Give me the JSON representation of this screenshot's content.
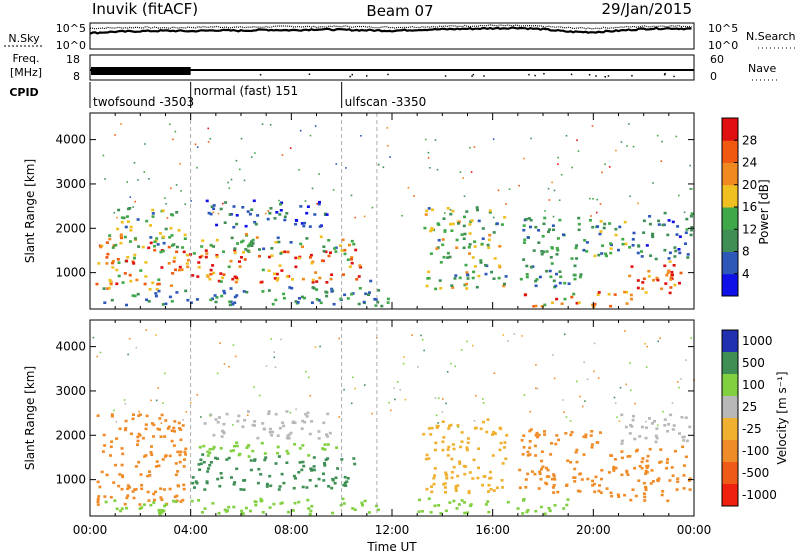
{
  "header": {
    "station": "Inuvik (fitACF)",
    "beam": "Beam 07",
    "date": "29/Jan/2015"
  },
  "colors": {
    "power_scale": [
      "#1010e8",
      "#2e58b8",
      "#3f8f55",
      "#3fa848",
      "#f0c020",
      "#f08a20",
      "#f05a10",
      "#e01010"
    ],
    "velocity_scale": [
      "#f02010",
      "#f05a18",
      "#f08c28",
      "#f0b030",
      "#b8b8b8",
      "#80d040",
      "#3f8f55",
      "#2030b0"
    ]
  },
  "chart_data": [
    {
      "type": "line",
      "panel": "N.Sky / N.Search",
      "left_label": "N.Sky",
      "right_label": "N.Search",
      "left_ticks": [
        "10^5",
        "10^0"
      ],
      "right_ticks": [
        "10^5",
        "10^0"
      ],
      "x_hours": [
        0,
        1,
        2,
        3,
        4,
        5,
        6,
        7,
        8,
        9,
        10,
        11,
        12,
        13,
        14,
        15,
        16,
        17,
        18,
        19,
        20,
        21,
        22,
        23,
        24
      ],
      "sky_level": [
        0.62,
        0.68,
        0.7,
        0.72,
        0.7,
        0.74,
        0.72,
        0.76,
        0.74,
        0.78,
        0.76,
        0.74,
        0.72,
        0.76,
        0.78,
        0.8,
        0.82,
        0.84,
        0.78,
        0.68,
        0.66,
        0.72,
        0.8,
        0.82,
        0.8
      ],
      "search_level": [
        0.82,
        0.84,
        0.86,
        0.84,
        0.86,
        0.88,
        0.86,
        0.88,
        0.9,
        0.88,
        0.9,
        0.88,
        0.86,
        0.88,
        0.9,
        0.92,
        0.94,
        0.92,
        0.9,
        0.84,
        0.82,
        0.86,
        0.9,
        0.92,
        0.9
      ]
    },
    {
      "type": "line",
      "panel": "Freq. / Nave",
      "left_label": "Freq.",
      "left_unit": "[MHz]",
      "right_label": "Nave",
      "left_ticks": [
        "18",
        "8"
      ],
      "right_ticks": [
        "60",
        "0"
      ],
      "freq_mhz": 10,
      "nave_dense_until_hour": 4.0
    },
    {
      "type": "table",
      "panel": "CPID",
      "label": "CPID",
      "segments": [
        {
          "name": "twofsound",
          "id": "-3503",
          "start_hour": 0.0,
          "end_hour": 4.0
        },
        {
          "name": "normal (fast)",
          "id": "151",
          "start_hour": 4.0,
          "end_hour": 10.0
        },
        {
          "name": "ulfscan",
          "id": "-3350",
          "start_hour": 10.0,
          "end_hour": 24.0
        }
      ]
    },
    {
      "type": "heatmap",
      "panel": "Power",
      "ylabel": "Slant Range [km]",
      "colorbar_label": "Power [dB]",
      "colorbar_ticks": [
        4,
        8,
        12,
        16,
        20,
        24,
        28
      ],
      "ylim": [
        180,
        4600
      ],
      "yticks": [
        1000,
        2000,
        3000,
        4000
      ],
      "xlim": [
        0,
        24
      ],
      "blobs": [
        {
          "t0": 0.2,
          "t1": 3.8,
          "r0": 650,
          "r1": 1900,
          "v": 22
        },
        {
          "t0": 1.0,
          "t1": 3.5,
          "r0": 1600,
          "r1": 2500,
          "v": 12
        },
        {
          "t0": 3.8,
          "t1": 10.8,
          "r0": 800,
          "r1": 1550,
          "v": 26
        },
        {
          "t0": 4.0,
          "t1": 10.5,
          "r0": 1450,
          "r1": 1900,
          "v": 14
        },
        {
          "t0": 4.5,
          "t1": 9.5,
          "r0": 2050,
          "r1": 2650,
          "v": 6
        },
        {
          "t0": 0.5,
          "t1": 11.5,
          "r0": 300,
          "r1": 700,
          "v": 10
        },
        {
          "t0": 11.0,
          "t1": 11.8,
          "r0": 250,
          "r1": 900,
          "v": 8
        },
        {
          "t0": 13.2,
          "t1": 16.5,
          "r0": 650,
          "r1": 2500,
          "v": 14
        },
        {
          "t0": 17.0,
          "t1": 19.5,
          "r0": 700,
          "r1": 2300,
          "v": 10
        },
        {
          "t0": 17.2,
          "t1": 21.5,
          "r0": 250,
          "r1": 600,
          "v": 24
        },
        {
          "t0": 19.5,
          "t1": 21.5,
          "r0": 1400,
          "r1": 2300,
          "v": 12
        },
        {
          "t0": 21.3,
          "t1": 23.7,
          "r0": 550,
          "r1": 1300,
          "v": 28
        },
        {
          "t0": 21.5,
          "t1": 23.9,
          "r0": 1300,
          "r1": 2400,
          "v": 8
        }
      ]
    },
    {
      "type": "heatmap",
      "panel": "Velocity",
      "ylabel": "Slant Range [km]",
      "xlabel": "Time UT",
      "colorbar_label": "Velocity [m s⁻¹]",
      "colorbar_ticks": [
        "1000",
        "500",
        "100",
        "25",
        "-25",
        "-100",
        "-500",
        "-1000"
      ],
      "ylim": [
        180,
        4600
      ],
      "yticks": [
        1000,
        2000,
        3000,
        4000
      ],
      "xlim": [
        0,
        24
      ],
      "xticks": [
        "00:00",
        "04:00",
        "08:00",
        "12:00",
        "16:00",
        "20:00",
        "00:00"
      ],
      "blobs": [
        {
          "t0": 0.2,
          "t1": 3.8,
          "r0": 450,
          "r1": 2500,
          "v": -200
        },
        {
          "t0": 4.0,
          "t1": 10.5,
          "r0": 800,
          "r1": 1600,
          "v": 200
        },
        {
          "t0": 4.2,
          "t1": 10.0,
          "r0": 1550,
          "r1": 1900,
          "v": 60
        },
        {
          "t0": 4.5,
          "t1": 9.5,
          "r0": 1950,
          "r1": 2600,
          "v": 0
        },
        {
          "t0": 0.5,
          "t1": 11.5,
          "r0": 250,
          "r1": 600,
          "v": 60
        },
        {
          "t0": 13.2,
          "t1": 16.5,
          "r0": 700,
          "r1": 2400,
          "v": -60
        },
        {
          "t0": 13.0,
          "t1": 19.0,
          "r0": 250,
          "r1": 600,
          "v": 60
        },
        {
          "t0": 17.0,
          "t1": 20.5,
          "r0": 700,
          "r1": 2200,
          "v": -200
        },
        {
          "t0": 20.5,
          "t1": 23.8,
          "r0": 500,
          "r1": 1800,
          "v": -250
        },
        {
          "t0": 21.0,
          "t1": 23.8,
          "r0": 1800,
          "r1": 2500,
          "v": 0
        }
      ]
    }
  ]
}
